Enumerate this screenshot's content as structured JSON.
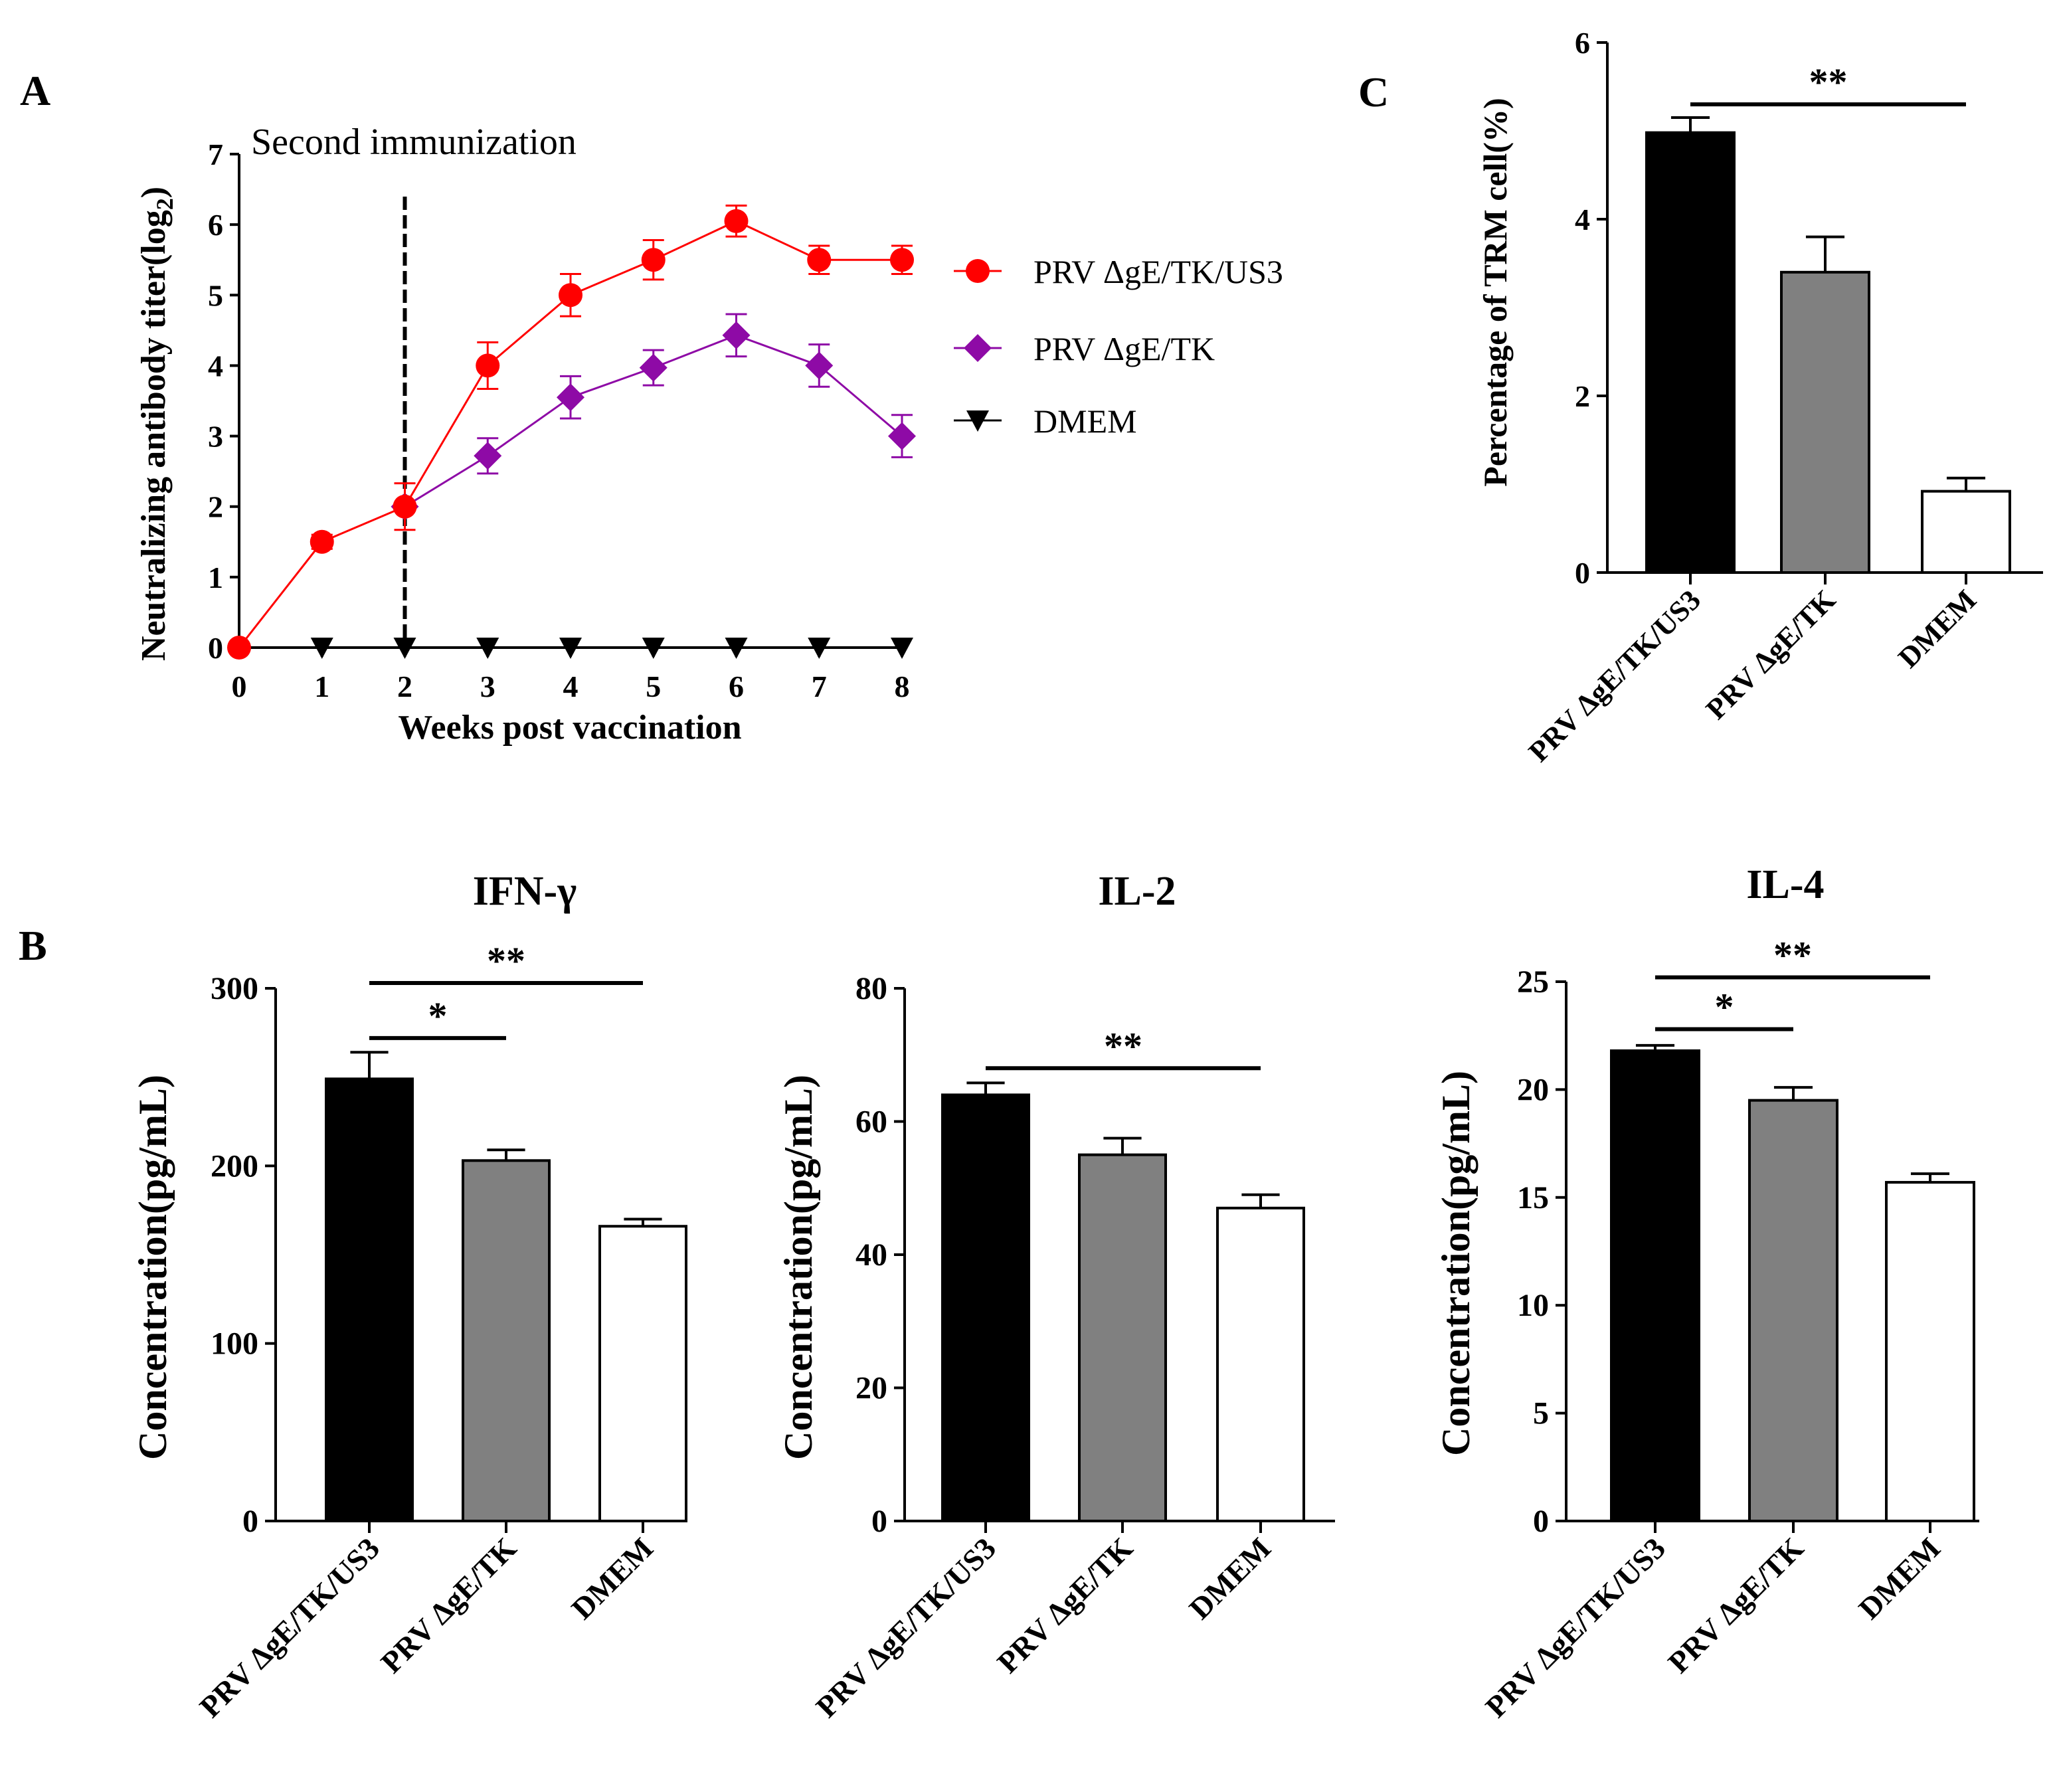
{
  "panels": {
    "A": {
      "letter": "A"
    },
    "B": {
      "letter": "B"
    },
    "C": {
      "letter": "C"
    }
  },
  "colors": {
    "us3": "#ff0000",
    "tk": "#8e0aa6",
    "dmem": "#000000",
    "bar_us3": "#000000",
    "bar_tk": "#808080",
    "bar_dmem": "#ffffff"
  },
  "chart_data": [
    {
      "id": "A",
      "type": "line",
      "ylabel_main": "Neutralizing antibody titer(log",
      "ylabel_sub": "2",
      "ylabel_close": ")",
      "xlabel": "Weeks post vaccination",
      "annotation": "Second immunization",
      "annotation_x": 2,
      "x": [
        0,
        1,
        2,
        3,
        4,
        5,
        6,
        7,
        8
      ],
      "xticks": [
        "0",
        "1",
        "2",
        "3",
        "4",
        "5",
        "6",
        "7",
        "8"
      ],
      "yticks": [
        "0",
        "1",
        "2",
        "3",
        "4",
        "5",
        "6",
        "7"
      ],
      "xlim": [
        0,
        8
      ],
      "ylim": [
        0,
        7
      ],
      "series": [
        {
          "name": "PRV ΔgE/TK/US3",
          "marker": "circle",
          "color": "#ff0000",
          "x": [
            0,
            1,
            2,
            3,
            4,
            5,
            6,
            7,
            8
          ],
          "values": [
            0,
            1.5,
            2,
            4,
            5,
            5.5,
            6.05,
            5.5,
            5.5
          ],
          "errors": [
            0,
            0.1,
            0.33,
            0.33,
            0.3,
            0.28,
            0.22,
            0.2,
            0.2
          ]
        },
        {
          "name": "PRV ΔgE/TK",
          "marker": "diamond",
          "color": "#8e0aa6",
          "x": [
            2,
            3,
            4,
            5,
            6,
            7,
            8
          ],
          "values": [
            2,
            2.72,
            3.55,
            3.97,
            4.43,
            4,
            3
          ],
          "errors": [
            0,
            0.25,
            0.3,
            0.25,
            0.3,
            0.3,
            0.3
          ]
        },
        {
          "name": "DMEM",
          "marker": "triangle-down",
          "color": "#000000",
          "x": [
            1,
            2,
            3,
            4,
            5,
            6,
            7,
            8
          ],
          "values": [
            0,
            0,
            0,
            0,
            0,
            0,
            0,
            0
          ],
          "errors": [
            0,
            0,
            0,
            0,
            0,
            0,
            0,
            0
          ]
        }
      ]
    },
    {
      "id": "B1",
      "type": "bar",
      "title": "IFN-γ",
      "ylabel": "Concentration(pg/mL)",
      "categories": [
        "PRV ΔgE/TK/US3",
        "PRV ΔgE/TK",
        "DMEM"
      ],
      "values": [
        249,
        203,
        166
      ],
      "errors": [
        15,
        6,
        4
      ],
      "ylim": [
        0,
        300
      ],
      "yticks": [
        "0",
        "100",
        "200",
        "300"
      ],
      "significance": [
        {
          "from": 0,
          "to": 2,
          "label": "**",
          "y": 303
        },
        {
          "from": 0,
          "to": 1,
          "label": "*",
          "y": 272
        }
      ]
    },
    {
      "id": "B2",
      "type": "bar",
      "title": "IL-2",
      "ylabel": "Concentration(pg/mL)",
      "categories": [
        "PRV ΔgE/TK/US3",
        "PRV ΔgE/TK",
        "DMEM"
      ],
      "values": [
        64,
        55,
        47
      ],
      "errors": [
        1.8,
        2.5,
        2
      ],
      "ylim": [
        0,
        80
      ],
      "yticks": [
        "0",
        "20",
        "40",
        "60",
        "80"
      ],
      "significance": [
        {
          "from": 0,
          "to": 2,
          "label": "**",
          "y": 68
        }
      ]
    },
    {
      "id": "B3",
      "type": "bar",
      "title": "IL-4",
      "ylabel": "Concentration(pg/mL)",
      "categories": [
        "PRV ΔgE/TK/US3",
        "PRV ΔgE/TK",
        "DMEM"
      ],
      "values": [
        21.8,
        19.5,
        15.7
      ],
      "errors": [
        0.25,
        0.6,
        0.4
      ],
      "ylim": [
        0,
        25
      ],
      "yticks": [
        "0",
        "5",
        "10",
        "15",
        "20",
        "25"
      ],
      "significance": [
        {
          "from": 0,
          "to": 2,
          "label": "**",
          "y": 25.2
        },
        {
          "from": 0,
          "to": 1,
          "label": "*",
          "y": 22.8
        }
      ]
    },
    {
      "id": "C",
      "type": "bar",
      "ylabel": "Percentage of TRM cell(%)",
      "categories": [
        "PRV ΔgE/TK/US3",
        "PRV ΔgE/TK",
        "DMEM"
      ],
      "values": [
        4.98,
        3.4,
        0.92
      ],
      "errors": [
        0.17,
        0.4,
        0.15
      ],
      "ylim": [
        0,
        6
      ],
      "yticks": [
        "0",
        "2",
        "4",
        "6"
      ],
      "significance": [
        {
          "from": 0,
          "to": 2,
          "label": "**",
          "y": 5.3
        }
      ]
    }
  ]
}
